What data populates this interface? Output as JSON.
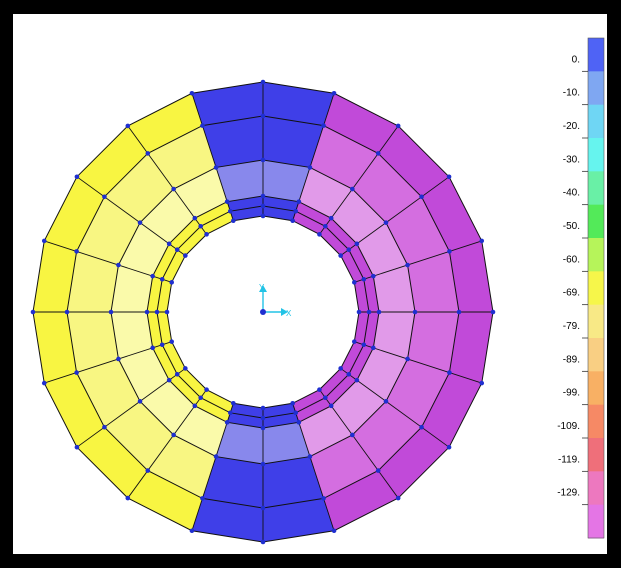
{
  "axes": {
    "y_label": "Y",
    "x_label": "X"
  },
  "colors": {
    "blue": "#3f3fe8",
    "blue_light": "#8888ec",
    "magenta": "#c14ad9",
    "magenta_mid": "#d46ee0",
    "magenta_light": "#e19ae9",
    "yellow": "#f8f542",
    "yellow_mid": "#f8f682",
    "yellow_light": "#fafaaa",
    "node": "#1f2fd0",
    "edge": "#111111"
  },
  "legend": {
    "labels": [
      "0.",
      "-10.",
      "-20.",
      "-30.",
      "-40.",
      "-50.",
      "-60.",
      "-69.",
      "-79.",
      "-89.",
      "-99.",
      "-109.",
      "-119.",
      "-129."
    ],
    "swatches": [
      "#4f63f5",
      "#7fa7f2",
      "#6fd6f4",
      "#66f4ee",
      "#69f0a6",
      "#53ea59",
      "#b6f45a",
      "#f6f64a",
      "#f8e986",
      "#f9cf83",
      "#f8b064",
      "#f68965",
      "#ef6f7a",
      "#ed78bf",
      "#e475e5"
    ]
  }
}
